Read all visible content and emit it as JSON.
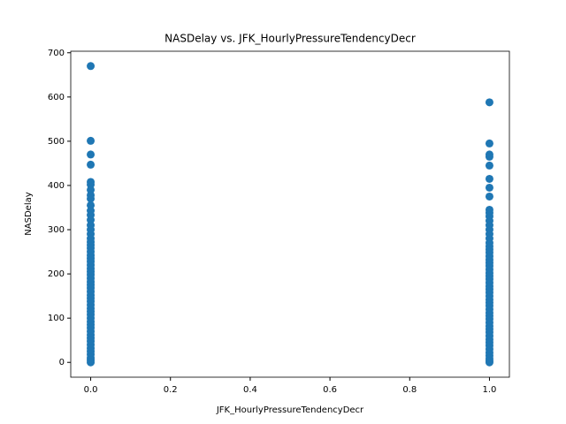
{
  "chart_data": {
    "type": "scatter",
    "title": "NASDelay vs. JFK_HourlyPressureTendencyDecr",
    "x_label": "JFK_HourlyPressureTendencyDecr",
    "y_label": "NASDelay",
    "color": "#1f77b4",
    "x": [
      0,
      0,
      0,
      0,
      0,
      0,
      0,
      0,
      0,
      0,
      0,
      0,
      0,
      0,
      0,
      0,
      0,
      0,
      0,
      0,
      0,
      0,
      0,
      0,
      0,
      0,
      0,
      0,
      0,
      0,
      0,
      0,
      0,
      0,
      0,
      0,
      0,
      0,
      0,
      0,
      0,
      0,
      0,
      0,
      0,
      0,
      0,
      0,
      0,
      0,
      0,
      0,
      0,
      0,
      0,
      1,
      1,
      1,
      1,
      1,
      1,
      1,
      1,
      1,
      1,
      1,
      1,
      1,
      1,
      1,
      1,
      1,
      1,
      1,
      1,
      1,
      1,
      1,
      1,
      1,
      1,
      1,
      1,
      1,
      1,
      1,
      1,
      1,
      1,
      1,
      1,
      1,
      1,
      1,
      1,
      1,
      1,
      1,
      1,
      1,
      1,
      1,
      1,
      1,
      1,
      1,
      1,
      1,
      1
    ],
    "y": [
      670,
      501,
      470,
      447,
      408,
      402,
      390,
      378,
      370,
      355,
      343,
      333,
      322,
      310,
      300,
      290,
      280,
      272,
      265,
      258,
      250,
      242,
      235,
      228,
      220,
      212,
      205,
      198,
      190,
      182,
      175,
      168,
      160,
      152,
      145,
      138,
      130,
      122,
      115,
      108,
      100,
      92,
      85,
      78,
      70,
      62,
      55,
      48,
      40,
      32,
      25,
      18,
      10,
      5,
      0,
      588,
      495,
      470,
      465,
      445,
      415,
      395,
      375,
      345,
      338,
      330,
      320,
      310,
      300,
      290,
      280,
      270,
      262,
      255,
      248,
      240,
      232,
      225,
      218,
      210,
      202,
      195,
      188,
      180,
      172,
      165,
      158,
      150,
      142,
      135,
      128,
      120,
      112,
      105,
      98,
      90,
      82,
      75,
      68,
      60,
      52,
      45,
      38,
      30,
      22,
      15,
      8,
      3,
      0
    ],
    "xlim": [
      -0.05,
      1.05
    ],
    "ylim": [
      -33.5,
      703.5
    ],
    "xticks": [
      {
        "value": 0,
        "label": "0.0"
      },
      {
        "value": 0.2,
        "label": "0.2"
      },
      {
        "value": 0.4,
        "label": "0.4"
      },
      {
        "value": 0.6,
        "label": "0.6"
      },
      {
        "value": 0.8,
        "label": "0.8"
      },
      {
        "value": 1,
        "label": "1.0"
      }
    ],
    "yticks": [
      0,
      100,
      200,
      300,
      400,
      500,
      600,
      700
    ]
  }
}
